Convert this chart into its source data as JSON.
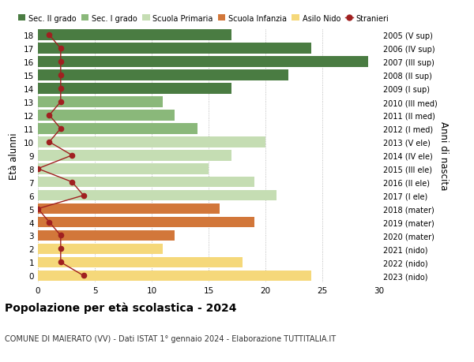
{
  "ages": [
    18,
    17,
    16,
    15,
    14,
    13,
    12,
    11,
    10,
    9,
    8,
    7,
    6,
    5,
    4,
    3,
    2,
    1,
    0
  ],
  "years": [
    "2005 (V sup)",
    "2006 (IV sup)",
    "2007 (III sup)",
    "2008 (II sup)",
    "2009 (I sup)",
    "2010 (III med)",
    "2011 (II med)",
    "2012 (I med)",
    "2013 (V ele)",
    "2014 (IV ele)",
    "2015 (III ele)",
    "2016 (II ele)",
    "2017 (I ele)",
    "2018 (mater)",
    "2019 (mater)",
    "2020 (mater)",
    "2021 (nido)",
    "2022 (nido)",
    "2023 (nido)"
  ],
  "bar_values": [
    17,
    24,
    29,
    22,
    17,
    11,
    12,
    14,
    20,
    17,
    15,
    19,
    21,
    16,
    19,
    12,
    11,
    18,
    24
  ],
  "bar_colors": [
    "#4a7c42",
    "#4a7c42",
    "#4a7c42",
    "#4a7c42",
    "#4a7c42",
    "#8ab87a",
    "#8ab87a",
    "#8ab87a",
    "#c5ddb3",
    "#c5ddb3",
    "#c5ddb3",
    "#c5ddb3",
    "#c5ddb3",
    "#d2773a",
    "#d2773a",
    "#d2773a",
    "#f5d87a",
    "#f5d87a",
    "#f5d87a"
  ],
  "stranieri_values": [
    1,
    2,
    2,
    2,
    2,
    2,
    1,
    2,
    1,
    3,
    0,
    3,
    4,
    0,
    1,
    2,
    2,
    2,
    4
  ],
  "stranieri_color": "#a02020",
  "legend_labels": [
    "Sec. II grado",
    "Sec. I grado",
    "Scuola Primaria",
    "Scuola Infanzia",
    "Asilo Nido",
    "Stranieri"
  ],
  "legend_colors": [
    "#4a7c42",
    "#8ab87a",
    "#c5ddb3",
    "#d2773a",
    "#f5d87a",
    "#a02020"
  ],
  "title": "Popolazione per età scolastica - 2024",
  "subtitle": "COMUNE DI MAIERATO (VV) - Dati ISTAT 1° gennaio 2024 - Elaborazione TUTTITALIA.IT",
  "ylabel_left": "Età alunni",
  "ylabel_right": "Anni di nascita",
  "xlim": [
    0,
    30
  ],
  "xticks": [
    0,
    5,
    10,
    15,
    20,
    25,
    30
  ],
  "background_color": "#ffffff",
  "bar_height": 0.8,
  "plot_bg": "#f5f5f0"
}
